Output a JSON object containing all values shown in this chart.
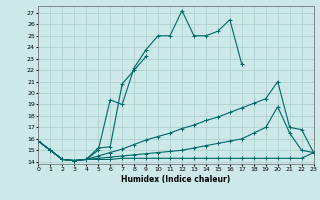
{
  "xlabel": "Humidex (Indice chaleur)",
  "bg_color": "#cce8e8",
  "grid_color": "#aacccc",
  "line_color": "#006666",
  "x_ticks": [
    0,
    1,
    2,
    3,
    4,
    5,
    6,
    7,
    8,
    9,
    10,
    11,
    12,
    13,
    14,
    15,
    16,
    17,
    18,
    19,
    20,
    21,
    22,
    23
  ],
  "y_ticks": [
    14,
    15,
    16,
    17,
    18,
    19,
    20,
    21,
    22,
    23,
    24,
    25,
    26,
    27
  ],
  "xlim": [
    0,
    23
  ],
  "ylim": [
    13.8,
    27.6
  ],
  "series": [
    {
      "x": [
        0,
        1,
        2,
        3,
        4,
        5,
        6,
        7,
        8,
        9,
        10,
        11,
        12,
        13,
        14,
        15,
        16,
        17,
        18,
        19,
        20,
        21,
        22,
        23
      ],
      "y": [
        15.8,
        15.0,
        14.2,
        14.1,
        14.2,
        15.0,
        19.4,
        19.0,
        22.2,
        23.8,
        25.0,
        25.0,
        27.2,
        25.0,
        25.0,
        25.4,
        26.4,
        22.5,
        null,
        null,
        null,
        null,
        null,
        null
      ]
    },
    {
      "x": [
        0,
        1,
        2,
        3,
        4,
        5,
        6,
        7,
        8,
        9,
        10,
        11,
        12,
        13,
        14,
        15,
        16,
        17,
        18,
        19,
        20,
        21,
        22,
        23
      ],
      "y": [
        15.8,
        15.0,
        14.2,
        14.1,
        14.2,
        15.2,
        15.3,
        20.8,
        22.0,
        23.2,
        null,
        null,
        null,
        null,
        null,
        null,
        null,
        null,
        null,
        null,
        null,
        null,
        null,
        null
      ]
    },
    {
      "x": [
        0,
        1,
        2,
        3,
        4,
        5,
        6,
        7,
        8,
        9,
        10,
        11,
        12,
        13,
        14,
        15,
        16,
        17,
        18,
        19,
        20,
        21,
        22,
        23
      ],
      "y": [
        15.8,
        15.0,
        14.2,
        14.1,
        14.2,
        14.5,
        14.8,
        15.1,
        15.5,
        15.9,
        16.2,
        16.5,
        16.9,
        17.2,
        17.6,
        17.9,
        18.3,
        18.7,
        19.1,
        19.5,
        21.0,
        17.0,
        16.8,
        14.8
      ]
    },
    {
      "x": [
        0,
        1,
        2,
        3,
        4,
        5,
        6,
        7,
        8,
        9,
        10,
        11,
        12,
        13,
        14,
        15,
        16,
        17,
        18,
        19,
        20,
        21,
        22,
        23
      ],
      "y": [
        15.8,
        15.0,
        14.2,
        14.1,
        14.2,
        14.3,
        14.4,
        14.5,
        14.6,
        14.7,
        14.8,
        14.9,
        15.0,
        15.2,
        15.4,
        15.6,
        15.8,
        16.0,
        16.5,
        17.0,
        18.8,
        16.5,
        15.0,
        14.8
      ]
    },
    {
      "x": [
        0,
        1,
        2,
        3,
        4,
        5,
        6,
        7,
        8,
        9,
        10,
        11,
        12,
        13,
        14,
        15,
        16,
        17,
        18,
        19,
        20,
        21,
        22,
        23
      ],
      "y": [
        15.8,
        15.0,
        14.2,
        14.1,
        14.2,
        14.2,
        14.2,
        14.3,
        14.3,
        14.3,
        14.3,
        14.3,
        14.3,
        14.3,
        14.3,
        14.3,
        14.3,
        14.3,
        14.3,
        14.3,
        14.3,
        14.3,
        14.3,
        14.8
      ]
    }
  ]
}
